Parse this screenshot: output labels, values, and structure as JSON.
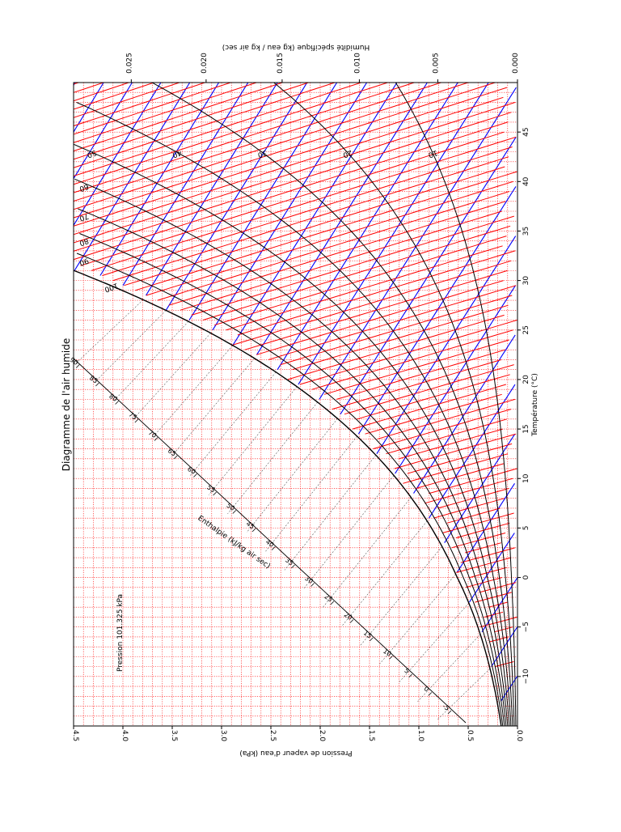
{
  "chart_data": {
    "type": "line",
    "title": "Diagramme de l'air humide",
    "pressure_note": "Pression 101.325 kPa",
    "xlabel": "Température (°C)",
    "xlim": [
      -15,
      50
    ],
    "xticks": [
      -10,
      -5,
      0,
      5,
      10,
      15,
      20,
      25,
      30,
      35,
      40,
      45
    ],
    "xtick_labels": [
      "−10",
      "−5",
      "0",
      "5",
      "10",
      "15",
      "20",
      "25",
      "30",
      "35",
      "40",
      "45"
    ],
    "y_left_label": "Pression de vapeur d'eau (kPa)",
    "y_left_lim": [
      0.0,
      4.5
    ],
    "y_left_ticks": [
      0.0,
      0.5,
      1.0,
      1.5,
      2.0,
      2.5,
      3.0,
      3.5,
      4.0,
      4.5
    ],
    "y_left_tick_labels": [
      "0.0",
      "0.5",
      "1.0",
      "1.5",
      "2.0",
      "2.5",
      "3.0",
      "3.5",
      "4.0",
      "4.5"
    ],
    "y_right_label": "Humidité spécifique (kg eau / kg air sec)",
    "y_right_ticks": [
      0.0,
      0.005,
      0.01,
      0.015,
      0.02,
      0.025
    ],
    "y_right_tick_labels": [
      "0.000",
      "0.005",
      "0.010",
      "0.015",
      "0.020",
      "0.025"
    ],
    "enthalpy_label": "Enthalpie (kJ/kg air sec)",
    "enthalpy_values": [
      -5,
      0,
      5,
      10,
      15,
      20,
      25,
      30,
      35,
      40,
      45,
      50,
      55,
      60,
      65,
      70,
      75,
      80,
      85,
      90
    ],
    "enthalpy_tick_labels": [
      "-5",
      "0",
      "5",
      "10",
      "15",
      "20",
      "25",
      "30",
      "35",
      "40",
      "45",
      "50",
      "55",
      "60",
      "65",
      "70",
      "75",
      "80",
      "85",
      "90"
    ],
    "relative_humidity_curves": [
      10,
      20,
      30,
      40,
      50,
      60,
      70,
      80,
      90,
      100
    ],
    "relative_humidity_labels": [
      "10",
      "20",
      "30",
      "40",
      "50",
      "60",
      "70",
      "80",
      "90",
      "100"
    ],
    "specific_volume_values": [
      0.74,
      0.75,
      0.76,
      0.77,
      0.78,
      0.79,
      0.8,
      0.81,
      0.82,
      0.83,
      0.84,
      0.85,
      0.86,
      0.87,
      0.88,
      0.89,
      0.9,
      0.91,
      0.92,
      0.93,
      0.94,
      0.95
    ],
    "specific_volume_labels": [
      "0.74",
      "0.75",
      "0.76",
      "0.77",
      "0.78",
      "0.79",
      "0.80",
      "0.81",
      "0.82",
      "0.83",
      "0.84",
      "0.85",
      "0.86",
      "0.87",
      "0.88",
      "0.89",
      "0.90",
      "0.91",
      "0.92",
      "0.93",
      "0.94",
      "0.95"
    ],
    "grid": true,
    "grid_style": "dotted-red",
    "colors": {
      "grid": "#ff0000",
      "enthalpy_lines": "#0000ff",
      "specific_volume_lines": "#ff0000",
      "humidity_curves": "#000000",
      "enthalpy_guides": "#000000"
    }
  }
}
